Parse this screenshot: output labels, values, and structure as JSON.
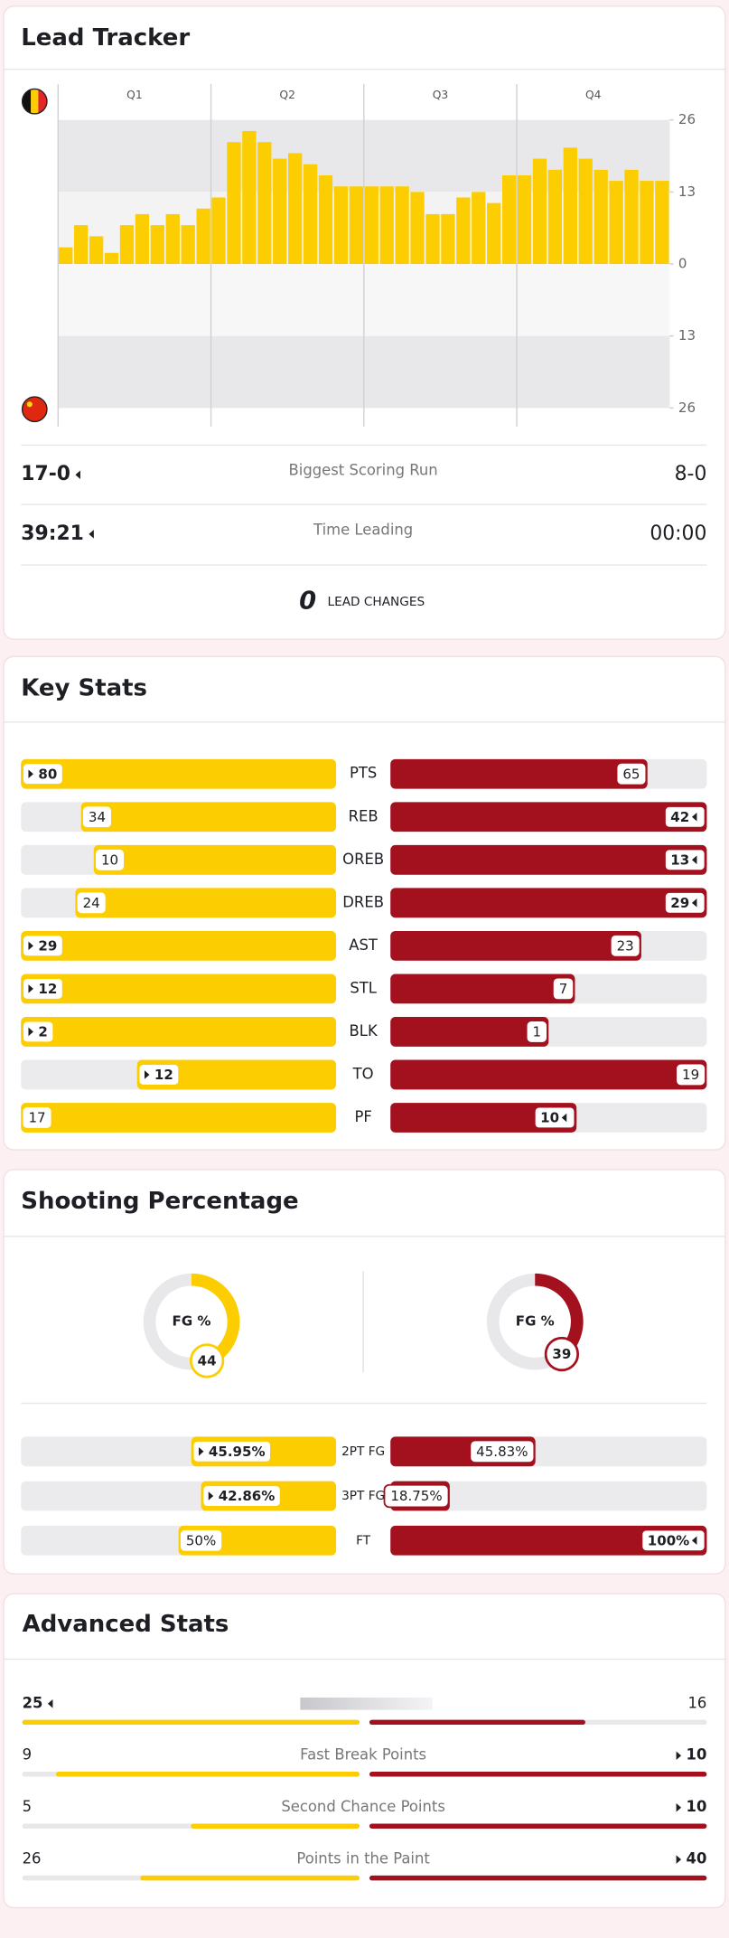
{
  "colors": {
    "home": "#fccd00",
    "away": "#a3101e"
  },
  "lead_tracker": {
    "title": "Lead Tracker",
    "quarters": [
      "Q1",
      "Q2",
      "Q3",
      "Q4"
    ],
    "ylim": [
      -26,
      26
    ],
    "yticks": [
      26,
      13,
      0,
      {
        "value": -13,
        "label": "13"
      },
      {
        "value": -26,
        "label": "26"
      }
    ],
    "lead": [
      3,
      7,
      5,
      2,
      7,
      9,
      7,
      9,
      7,
      10,
      12,
      22,
      24,
      22,
      19,
      20,
      18,
      16,
      14,
      14,
      14,
      14,
      14,
      13,
      9,
      9,
      12,
      13,
      11,
      16,
      16,
      19,
      17,
      21,
      19,
      17,
      15,
      17,
      15,
      15
    ],
    "rows": [
      {
        "home": "17-0",
        "label": "Biggest Scoring Run",
        "away": "8-0",
        "leader": "home"
      },
      {
        "home": "39:21",
        "label": "Time Leading",
        "away": "00:00",
        "leader": "home"
      }
    ],
    "lead_changes": 0,
    "lead_changes_label": "LEAD CHANGES"
  },
  "key_stats": {
    "title": "Key Stats",
    "rows": [
      {
        "label": "PTS",
        "values": [
          80,
          65
        ],
        "leader": "home"
      },
      {
        "label": "REB",
        "values": [
          34,
          42
        ],
        "leader": "away"
      },
      {
        "label": "OREB",
        "values": [
          10,
          13
        ],
        "leader": "away"
      },
      {
        "label": "DREB",
        "values": [
          24,
          29
        ],
        "leader": "away"
      },
      {
        "label": "AST",
        "values": [
          29,
          23
        ],
        "leader": "home"
      },
      {
        "label": "STL",
        "values": [
          12,
          7
        ],
        "leader": "home"
      },
      {
        "label": "BLK",
        "values": [
          2,
          1
        ],
        "leader": "home"
      },
      {
        "label": "TO",
        "values": [
          12,
          19
        ],
        "leader": "home"
      },
      {
        "label": "PF",
        "values": [
          17,
          10
        ],
        "leader": "away"
      }
    ]
  },
  "shooting": {
    "title": "Shooting Percentage",
    "fg_label": "FG %",
    "fg": [
      44,
      39
    ],
    "xlim": [
      0,
      100
    ],
    "rows": [
      {
        "label": "2PT FG",
        "values": [
          45.95,
          45.83
        ],
        "value_labels": [
          "45.95%",
          "45.83%"
        ],
        "leader": "home"
      },
      {
        "label": "3PT FG",
        "values": [
          42.86,
          18.75
        ],
        "value_labels": [
          "42.86%",
          "18.75%"
        ],
        "leader": "home"
      },
      {
        "label": "FT",
        "values": [
          50,
          100
        ],
        "value_labels": [
          "50%",
          "100%"
        ],
        "leader": "away"
      }
    ]
  },
  "advanced": {
    "title": "Advanced Stats",
    "rows": [
      {
        "label": null,
        "values": [
          25,
          16
        ],
        "leader": "home"
      },
      {
        "label": "Fast Break Points",
        "values": [
          9,
          10
        ],
        "leader": "away"
      },
      {
        "label": "Second Chance Points",
        "values": [
          5,
          10
        ],
        "leader": "away"
      },
      {
        "label": "Points in the Paint",
        "values": [
          26,
          40
        ],
        "leader": "away"
      }
    ]
  }
}
